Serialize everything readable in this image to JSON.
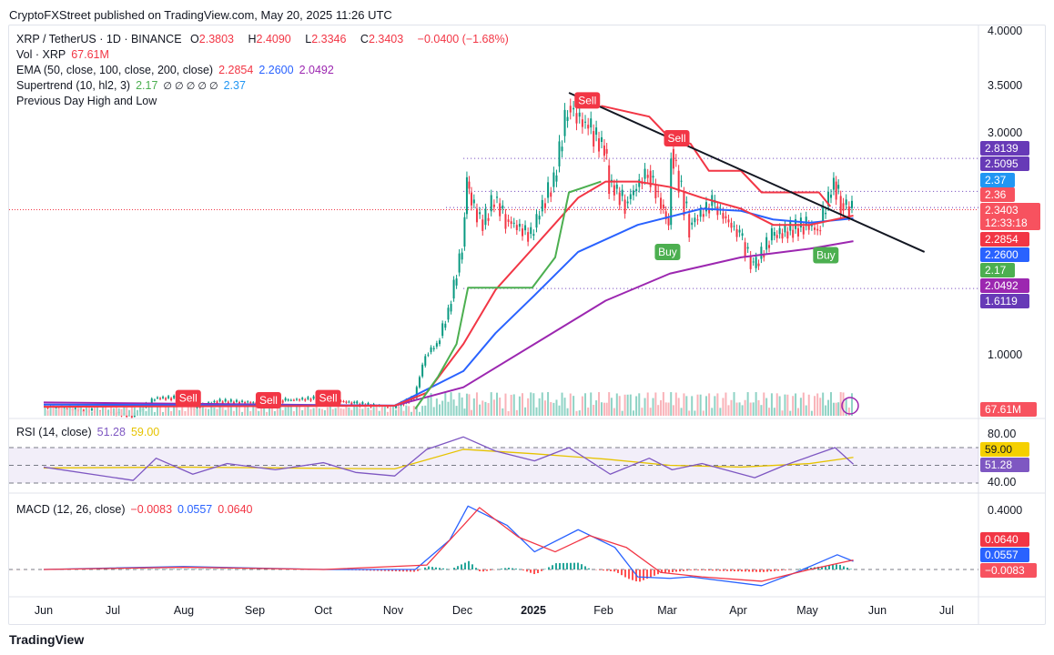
{
  "header": {
    "published": "CryptoFXStreet published on TradingView.com, May 20, 2025 11:26 UTC"
  },
  "legend": {
    "symbol": "XRP / TetherUS · 1D · BINANCE",
    "o_label": "O",
    "o": "2.3803",
    "h_label": "H",
    "h": "2.4090",
    "l_label": "L",
    "l": "2.3346",
    "c_label": "C",
    "c": "2.3403",
    "change": "−0.0400 (−1.68%)",
    "vol_label": "Vol · XRP",
    "vol": "67.61M",
    "ema_label": "EMA (50, close, 100, close, 200, close)",
    "ema50": "2.2854",
    "ema100": "2.2600",
    "ema200": "2.0492",
    "st_label": "Supertrend (10, hl2, 3)",
    "st_up": "2.17",
    "st_na": "∅ ∅ ∅ ∅ ∅",
    "st_down": "2.37",
    "pdhl_label": "Previous Day High and Low",
    "rsi_label": "RSI (14, close)",
    "rsi": "51.28",
    "rsi_ma": "59.00",
    "macd_label": "MACD (12, 26, close)",
    "macd_hist": "−0.0083",
    "macd": "0.0557",
    "macd_signal": "0.0640"
  },
  "colors": {
    "up": "#089981",
    "down": "#f23645",
    "ema50": "#f23645",
    "ema100": "#2962ff",
    "ema200": "#9c27b0",
    "supertrend_up": "#4caf50",
    "supertrend_down": "#f23645",
    "rsi": "#7e57c2",
    "rsi_ma": "#e6c300",
    "macd": "#2962ff",
    "signal": "#f23645"
  },
  "signals": {
    "sell": "Sell",
    "buy": "Buy"
  },
  "footer": {
    "brand": "TradingView"
  },
  "chart_data": [
    {
      "type": "line",
      "title": "XRP / TetherUS · 1D · BINANCE",
      "y_scale": "linear",
      "ylim": [
        0.5,
        4.0
      ],
      "y_ticks": [
        "4.0000",
        "3.5000",
        "3.0000",
        "1.0000"
      ],
      "x_ticks": [
        "Jun",
        "Jul",
        "Aug",
        "Sep",
        "Oct",
        "Nov",
        "Dec",
        "2025",
        "Feb",
        "Mar",
        "Apr",
        "May",
        "Jun",
        "Jul"
      ],
      "price_close": [
        [
          "2024-06-01",
          0.52
        ],
        [
          "2024-07-01",
          0.47
        ],
        [
          "2024-07-10",
          0.43
        ],
        [
          "2024-07-20",
          0.6
        ],
        [
          "2024-08-01",
          0.6
        ],
        [
          "2024-08-05",
          0.5
        ],
        [
          "2024-08-15",
          0.57
        ],
        [
          "2024-09-01",
          0.56
        ],
        [
          "2024-09-15",
          0.58
        ],
        [
          "2024-10-01",
          0.6
        ],
        [
          "2024-10-15",
          0.55
        ],
        [
          "2024-11-01",
          0.51
        ],
        [
          "2024-11-10",
          0.6
        ],
        [
          "2024-11-15",
          1.0
        ],
        [
          "2024-11-20",
          1.1
        ],
        [
          "2024-11-25",
          1.4
        ],
        [
          "2024-12-01",
          2.0
        ],
        [
          "2024-12-03",
          2.6
        ],
        [
          "2024-12-05",
          2.4
        ],
        [
          "2024-12-10",
          2.2
        ],
        [
          "2024-12-15",
          2.45
        ],
        [
          "2024-12-20",
          2.25
        ],
        [
          "2024-12-31",
          2.1
        ],
        [
          "2025-01-05",
          2.4
        ],
        [
          "2025-01-10",
          2.6
        ],
        [
          "2025-01-16",
          3.3
        ],
        [
          "2025-01-20",
          3.2
        ],
        [
          "2025-01-25",
          3.1
        ],
        [
          "2025-02-01",
          2.9
        ],
        [
          "2025-02-03",
          2.6
        ],
        [
          "2025-02-10",
          2.4
        ],
        [
          "2025-02-20",
          2.7
        ],
        [
          "2025-03-01",
          2.2
        ],
        [
          "2025-03-02",
          2.9
        ],
        [
          "2025-03-10",
          2.2
        ],
        [
          "2025-03-20",
          2.4
        ],
        [
          "2025-04-01",
          2.1
        ],
        [
          "2025-04-07",
          1.8
        ],
        [
          "2025-04-15",
          2.1
        ],
        [
          "2025-04-30",
          2.2
        ],
        [
          "2025-05-05",
          2.15
        ],
        [
          "2025-05-12",
          2.6
        ],
        [
          "2025-05-15",
          2.4
        ],
        [
          "2025-05-20",
          2.34
        ]
      ],
      "ema50": [
        [
          "2024-06-01",
          0.52
        ],
        [
          "2024-11-01",
          0.53
        ],
        [
          "2024-11-15",
          0.65
        ],
        [
          "2024-12-01",
          1.1
        ],
        [
          "2024-12-15",
          1.6
        ],
        [
          "2025-01-01",
          2.0
        ],
        [
          "2025-01-20",
          2.45
        ],
        [
          "2025-02-01",
          2.6
        ],
        [
          "2025-02-15",
          2.6
        ],
        [
          "2025-03-01",
          2.55
        ],
        [
          "2025-03-15",
          2.45
        ],
        [
          "2025-04-01",
          2.35
        ],
        [
          "2025-04-15",
          2.2
        ],
        [
          "2025-05-01",
          2.2
        ],
        [
          "2025-05-20",
          2.2854
        ]
      ],
      "ema100": [
        [
          "2024-06-01",
          0.54
        ],
        [
          "2024-11-01",
          0.53
        ],
        [
          "2024-12-01",
          0.85
        ],
        [
          "2024-12-15",
          1.2
        ],
        [
          "2025-01-01",
          1.55
        ],
        [
          "2025-01-20",
          1.95
        ],
        [
          "2025-02-15",
          2.2
        ],
        [
          "2025-03-15",
          2.35
        ],
        [
          "2025-04-01",
          2.33
        ],
        [
          "2025-04-15",
          2.25
        ],
        [
          "2025-05-01",
          2.22
        ],
        [
          "2025-05-20",
          2.26
        ]
      ],
      "ema200": [
        [
          "2024-06-01",
          0.56
        ],
        [
          "2024-11-01",
          0.53
        ],
        [
          "2024-12-01",
          0.7
        ],
        [
          "2025-01-01",
          1.1
        ],
        [
          "2025-02-01",
          1.5
        ],
        [
          "2025-03-01",
          1.75
        ],
        [
          "2025-04-01",
          1.9
        ],
        [
          "2025-05-01",
          1.98
        ],
        [
          "2025-05-20",
          2.0492
        ]
      ],
      "supertrend_up": [
        [
          "2024-11-10",
          0.5
        ],
        [
          "2024-11-20",
          0.8
        ],
        [
          "2024-11-28",
          1.1
        ],
        [
          "2024-12-03",
          1.62
        ],
        [
          "2024-12-31",
          1.62
        ],
        [
          "2025-01-10",
          1.9
        ],
        [
          "2025-01-16",
          2.5
        ],
        [
          "2025-01-30",
          2.6
        ]
      ],
      "supertrend_down": [
        [
          "2025-01-30",
          3.3
        ],
        [
          "2025-02-20",
          3.2
        ],
        [
          "2025-03-01",
          3.0
        ],
        [
          "2025-03-10",
          2.95
        ],
        [
          "2025-03-18",
          2.7
        ],
        [
          "2025-04-01",
          2.7
        ],
        [
          "2025-04-10",
          2.5
        ],
        [
          "2025-05-05",
          2.5
        ],
        [
          "2025-05-10",
          2.37
        ]
      ],
      "trendline": [
        [
          "2025-01-16",
          3.42
        ],
        [
          "2025-06-20",
          1.95
        ]
      ],
      "levels": {
        "2.8139": "2.8139",
        "2.5095": "2.5095",
        "1.6119": "1.6119"
      },
      "signals": [
        [
          "2024-08-03",
          "Sell",
          0.6
        ],
        [
          "2024-09-07",
          "Sell",
          0.58
        ],
        [
          "2024-10-03",
          "Sell",
          0.6
        ],
        [
          "2025-01-24",
          "Sell",
          3.35
        ],
        [
          "2025-03-04",
          "Sell",
          3.0
        ],
        [
          "2025-02-28",
          "Buy",
          1.95
        ],
        [
          "2025-05-08",
          "Buy",
          1.92
        ]
      ],
      "price_labels": [
        {
          "text": "2.8139",
          "color": "#673ab7"
        },
        {
          "text": "2.5095",
          "color": "#673ab7"
        },
        {
          "text": "2.37",
          "color": "#2196f3"
        },
        {
          "text": "2.36",
          "color": "#f7525f"
        },
        {
          "text": "2.3403",
          "color": "#f7525f"
        },
        {
          "text": "12:33:18",
          "color": "#f7525f"
        },
        {
          "text": "2.2854",
          "color": "#f23645"
        },
        {
          "text": "2.2600",
          "color": "#2962ff"
        },
        {
          "text": "2.17",
          "color": "#4caf50"
        },
        {
          "text": "2.0492",
          "color": "#9c27b0"
        },
        {
          "text": "1.6119",
          "color": "#673ab7"
        },
        {
          "text": "67.61M",
          "color": "#f7525f"
        }
      ]
    },
    {
      "type": "line",
      "title": "RSI (14, close)",
      "ylim": [
        20,
        90
      ],
      "bands": [
        30,
        50,
        70
      ],
      "y_ticks": [
        "80.00",
        "40.00"
      ],
      "rsi": [
        [
          "2024-06-01",
          48
        ],
        [
          "2024-07-10",
          33
        ],
        [
          "2024-07-20",
          58
        ],
        [
          "2024-08-05",
          40
        ],
        [
          "2024-08-20",
          52
        ],
        [
          "2024-09-10",
          45
        ],
        [
          "2024-10-01",
          53
        ],
        [
          "2024-10-15",
          42
        ],
        [
          "2024-11-01",
          38
        ],
        [
          "2024-11-15",
          68
        ],
        [
          "2024-12-01",
          82
        ],
        [
          "2024-12-15",
          66
        ],
        [
          "2025-01-01",
          55
        ],
        [
          "2025-01-16",
          70
        ],
        [
          "2025-02-03",
          40
        ],
        [
          "2025-02-20",
          58
        ],
        [
          "2025-03-02",
          45
        ],
        [
          "2025-03-15",
          52
        ],
        [
          "2025-04-07",
          36
        ],
        [
          "2025-04-20",
          50
        ],
        [
          "2025-05-12",
          70
        ],
        [
          "2025-05-20",
          51.28
        ]
      ],
      "rsi_ma": [
        [
          "2024-06-01",
          47
        ],
        [
          "2024-08-01",
          48
        ],
        [
          "2024-09-15",
          47
        ],
        [
          "2024-11-01",
          46
        ],
        [
          "2024-12-01",
          68
        ],
        [
          "2025-01-01",
          63
        ],
        [
          "2025-02-01",
          57
        ],
        [
          "2025-03-01",
          50
        ],
        [
          "2025-04-01",
          48
        ],
        [
          "2025-05-01",
          52
        ],
        [
          "2025-05-20",
          59
        ]
      ]
    },
    {
      "type": "line",
      "title": "MACD (12, 26, close)",
      "ylim": [
        -0.15,
        0.45
      ],
      "y_ticks": [
        "0.4000"
      ],
      "macd": [
        [
          "2024-06-01",
          0.0
        ],
        [
          "2024-08-01",
          0.02
        ],
        [
          "2024-10-01",
          0.0
        ],
        [
          "2024-11-10",
          0.0
        ],
        [
          "2024-11-25",
          0.2
        ],
        [
          "2024-12-03",
          0.43
        ],
        [
          "2024-12-20",
          0.3
        ],
        [
          "2025-01-01",
          0.12
        ],
        [
          "2025-01-20",
          0.27
        ],
        [
          "2025-02-05",
          0.15
        ],
        [
          "2025-02-15",
          -0.05
        ],
        [
          "2025-03-01",
          -0.06
        ],
        [
          "2025-03-10",
          -0.05
        ],
        [
          "2025-04-10",
          -0.11
        ],
        [
          "2025-04-25",
          -0.02
        ],
        [
          "2025-05-13",
          0.1
        ],
        [
          "2025-05-20",
          0.0557
        ]
      ],
      "signal": [
        [
          "2024-06-01",
          0.0
        ],
        [
          "2024-08-01",
          0.015
        ],
        [
          "2024-10-01",
          0.0
        ],
        [
          "2024-11-15",
          0.03
        ],
        [
          "2024-12-01",
          0.3
        ],
        [
          "2024-12-08",
          0.42
        ],
        [
          "2024-12-25",
          0.22
        ],
        [
          "2025-01-10",
          0.12
        ],
        [
          "2025-01-25",
          0.23
        ],
        [
          "2025-02-10",
          0.15
        ],
        [
          "2025-02-25",
          -0.02
        ],
        [
          "2025-03-15",
          -0.05
        ],
        [
          "2025-04-10",
          -0.08
        ],
        [
          "2025-05-01",
          0.0
        ],
        [
          "2025-05-20",
          0.064
        ]
      ]
    }
  ]
}
